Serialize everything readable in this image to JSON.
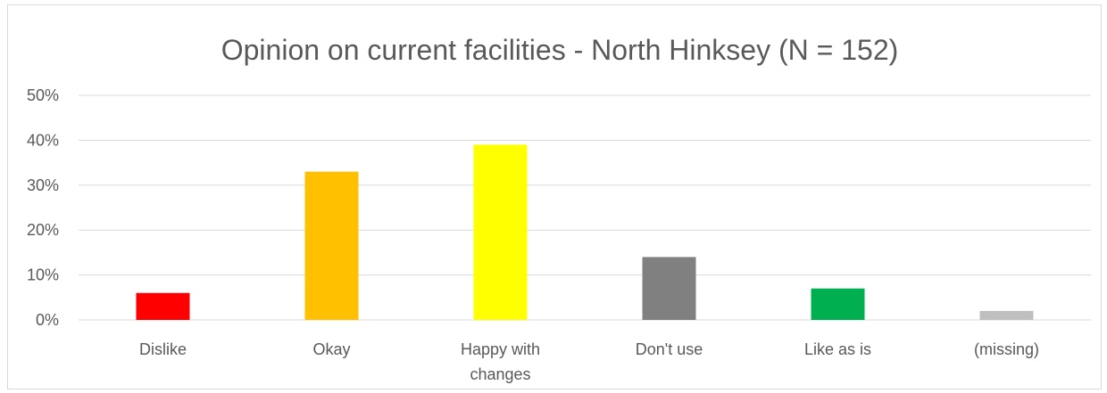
{
  "chart_data": {
    "type": "bar",
    "title": "Opinion on current facilities - North Hinksey (N = 152)",
    "xlabel": "",
    "ylabel": "",
    "categories": [
      "Dislike",
      "Okay",
      "Happy with changes",
      "Don't use",
      "Like as is",
      "(missing)"
    ],
    "category_lines": [
      [
        "Dislike"
      ],
      [
        "Okay"
      ],
      [
        "Happy with",
        "changes"
      ],
      [
        "Don't use"
      ],
      [
        "Like as is"
      ],
      [
        "(missing)"
      ]
    ],
    "values": [
      6,
      33,
      39,
      14,
      7,
      2
    ],
    "colors": [
      "#ff0000",
      "#ffc000",
      "#ffff00",
      "#808080",
      "#00b050",
      "#bfbfbf"
    ],
    "ylim": [
      0,
      50
    ],
    "yticks": [
      0,
      10,
      20,
      30,
      40,
      50
    ],
    "ytick_labels": [
      "0%",
      "10%",
      "20%",
      "30%",
      "40%",
      "50%"
    ],
    "grid": true,
    "legend": "none"
  }
}
